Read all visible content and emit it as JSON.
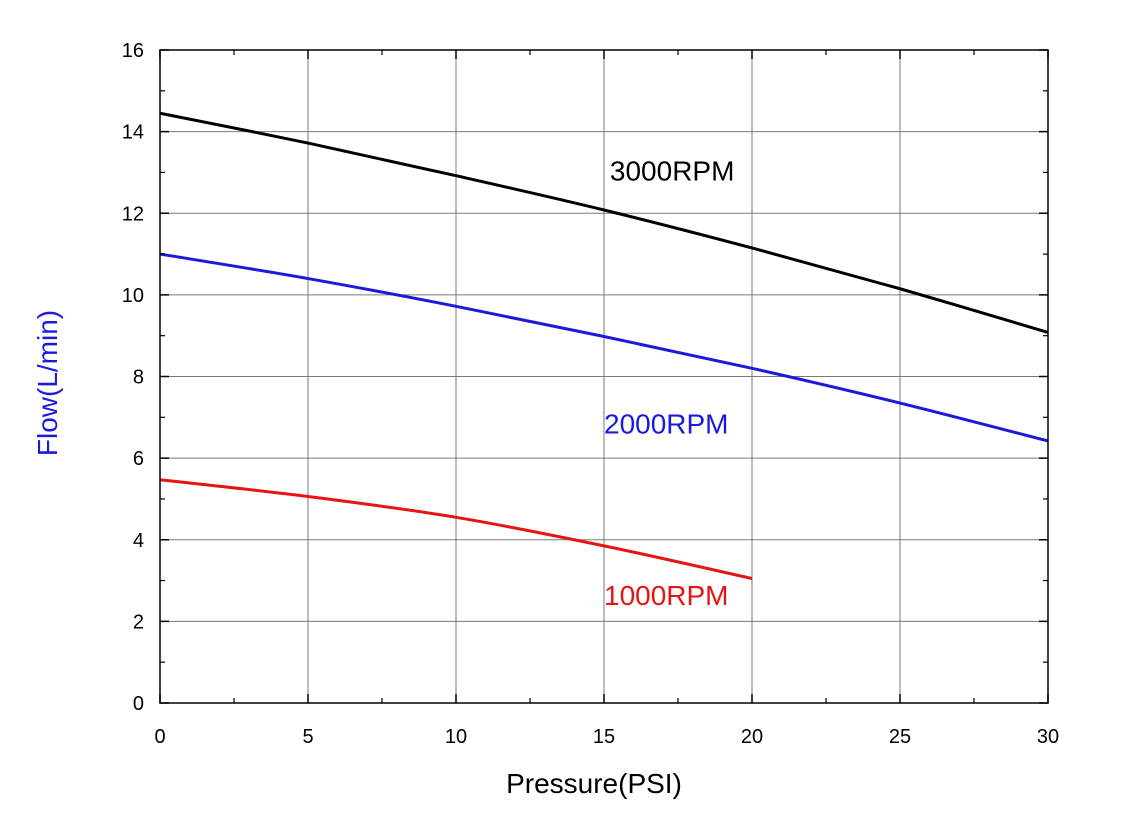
{
  "chart_data": {
    "type": "line",
    "title": "",
    "xlabel": "Pressure(PSI)",
    "ylabel": "Flow(L/min)",
    "xlabel_color": "#000000",
    "ylabel_color": "#1a1adc",
    "xlim": [
      0,
      30
    ],
    "ylim": [
      0,
      16
    ],
    "xticks": [
      0,
      5,
      10,
      15,
      20,
      25,
      30
    ],
    "yticks": [
      0,
      2,
      4,
      6,
      8,
      10,
      12,
      14,
      16
    ],
    "xtick_labels": [
      "0",
      "5",
      "10",
      "15",
      "20",
      "25",
      "30"
    ],
    "ytick_labels": [
      "0",
      "2",
      "4",
      "6",
      "8",
      "10",
      "12",
      "14",
      "16"
    ],
    "grid": true,
    "series": [
      {
        "name": "3000RPM",
        "color": "#000000",
        "label_at": [
          15.2,
          12.8
        ],
        "points": [
          [
            0,
            14.45
          ],
          [
            5,
            13.72
          ],
          [
            10,
            12.92
          ],
          [
            15,
            12.08
          ],
          [
            20,
            11.15
          ],
          [
            25,
            10.15
          ],
          [
            30,
            9.08
          ]
        ]
      },
      {
        "name": "2000RPM",
        "color": "#1a1adc",
        "label_at": [
          15.0,
          6.6
        ],
        "points": [
          [
            0,
            11.0
          ],
          [
            5,
            10.4
          ],
          [
            10,
            9.72
          ],
          [
            15,
            8.98
          ],
          [
            20,
            8.2
          ],
          [
            25,
            7.35
          ],
          [
            30,
            6.42
          ]
        ]
      },
      {
        "name": "1000RPM",
        "color": "#e61414",
        "label_at": [
          15.0,
          2.4
        ],
        "points": [
          [
            0,
            5.47
          ],
          [
            5,
            5.06
          ],
          [
            10,
            4.55
          ],
          [
            15,
            3.85
          ],
          [
            20,
            3.05
          ]
        ]
      }
    ]
  }
}
